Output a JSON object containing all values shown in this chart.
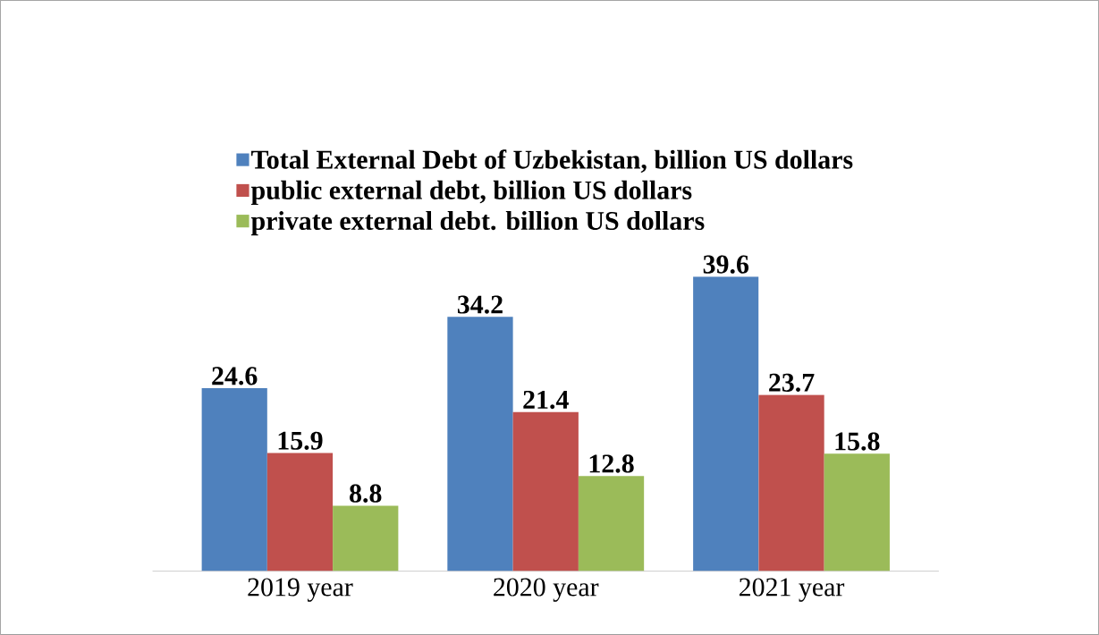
{
  "chart_data": {
    "type": "bar",
    "categories": [
      "2019 year",
      "2020 year",
      "2021 year"
    ],
    "series": [
      {
        "name": "Total External Debt of Uzbekistan, billion US dollars",
        "color": "#4f81bd",
        "values": [
          24.6,
          34.2,
          39.6
        ]
      },
      {
        "name": "public external debt, billion US dollars",
        "color": "#c0504d",
        "values": [
          15.9,
          21.4,
          23.7
        ]
      },
      {
        "name": "private external debt. billion US dollars",
        "color": "#9bbb59",
        "values": [
          8.8,
          12.8,
          15.8
        ]
      }
    ],
    "data_labels": true,
    "legend": "top"
  }
}
